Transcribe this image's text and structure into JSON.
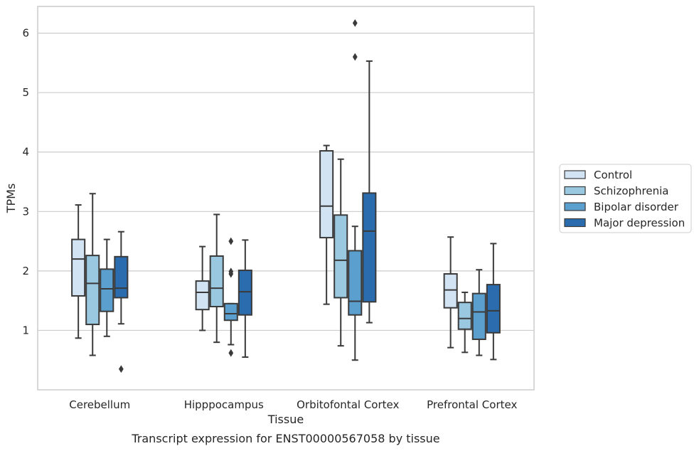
{
  "caption": "Transcript expression for ENST00000567058 by tissue",
  "chart_data": {
    "type": "box",
    "xlabel": "Tissue",
    "ylabel": "TPMs",
    "ylim": [
      0,
      6.45
    ],
    "yticks": [
      1,
      2,
      3,
      4,
      5,
      6
    ],
    "grid": "horizontal",
    "legend_position": "right",
    "categories": [
      "Cerebellum",
      "Hipppocampus",
      "Orbitofontal Cortex",
      "Prefrontal Cortex"
    ],
    "series": [
      {
        "name": "Control",
        "color": "#d2e3f3",
        "boxes": [
          {
            "whisker_low": 0.87,
            "q1": 1.58,
            "median": 2.2,
            "q3": 2.53,
            "whisker_high": 3.11,
            "outliers": []
          },
          {
            "whisker_low": 1.0,
            "q1": 1.35,
            "median": 1.64,
            "q3": 1.83,
            "whisker_high": 2.41,
            "outliers": []
          },
          {
            "whisker_low": 1.44,
            "q1": 2.56,
            "median": 3.09,
            "q3": 4.02,
            "whisker_high": 4.11,
            "outliers": []
          },
          {
            "whisker_low": 0.71,
            "q1": 1.38,
            "median": 1.68,
            "q3": 1.95,
            "whisker_high": 2.57,
            "outliers": []
          }
        ]
      },
      {
        "name": "Schizophrenia",
        "color": "#9ac8e0",
        "boxes": [
          {
            "whisker_low": 0.58,
            "q1": 1.1,
            "median": 1.79,
            "q3": 2.26,
            "whisker_high": 3.3,
            "outliers": []
          },
          {
            "whisker_low": 0.8,
            "q1": 1.4,
            "median": 1.71,
            "q3": 2.25,
            "whisker_high": 2.95,
            "outliers": []
          },
          {
            "whisker_low": 0.74,
            "q1": 1.55,
            "median": 2.18,
            "q3": 2.94,
            "whisker_high": 3.88,
            "outliers": []
          },
          {
            "whisker_low": 0.63,
            "q1": 1.02,
            "median": 1.2,
            "q3": 1.47,
            "whisker_high": 1.64,
            "outliers": []
          }
        ]
      },
      {
        "name": "Bipolar disorder",
        "color": "#5a9fcd",
        "boxes": [
          {
            "whisker_low": 0.9,
            "q1": 1.32,
            "median": 1.7,
            "q3": 2.03,
            "whisker_high": 2.53,
            "outliers": []
          },
          {
            "whisker_low": 0.76,
            "q1": 1.17,
            "median": 1.28,
            "q3": 1.45,
            "whisker_high": 1.45,
            "outliers": [
              0.62,
              1.95,
              1.99,
              2.5
            ]
          },
          {
            "whisker_low": 0.5,
            "q1": 1.26,
            "median": 1.49,
            "q3": 2.34,
            "whisker_high": 2.75,
            "outliers": [
              5.6,
              6.17
            ]
          },
          {
            "whisker_low": 0.58,
            "q1": 0.85,
            "median": 1.31,
            "q3": 1.62,
            "whisker_high": 2.02,
            "outliers": []
          }
        ]
      },
      {
        "name": "Major depression",
        "color": "#2a6cae",
        "boxes": [
          {
            "whisker_low": 1.11,
            "q1": 1.55,
            "median": 1.71,
            "q3": 2.24,
            "whisker_high": 2.66,
            "outliers": [
              0.35
            ]
          },
          {
            "whisker_low": 0.55,
            "q1": 1.26,
            "median": 1.65,
            "q3": 2.01,
            "whisker_high": 2.52,
            "outliers": []
          },
          {
            "whisker_low": 1.13,
            "q1": 1.48,
            "median": 2.67,
            "q3": 3.31,
            "whisker_high": 5.53,
            "outliers": []
          },
          {
            "whisker_low": 0.51,
            "q1": 0.96,
            "median": 1.33,
            "q3": 1.77,
            "whisker_high": 2.46,
            "outliers": []
          }
        ]
      }
    ]
  }
}
